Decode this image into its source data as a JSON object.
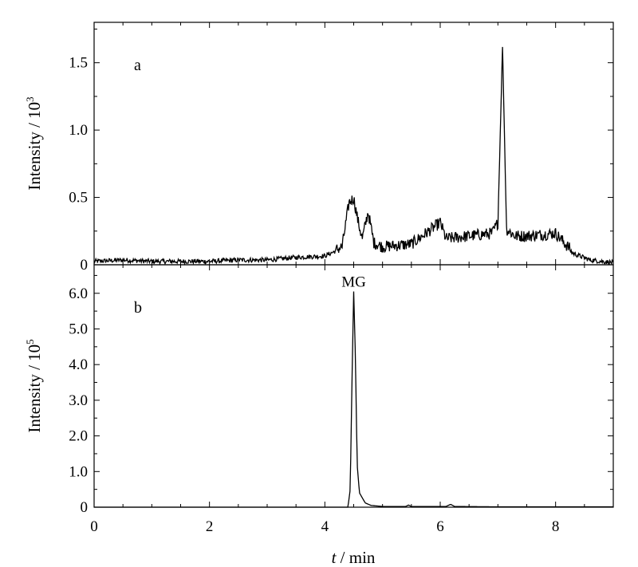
{
  "chart_data": [
    {
      "panel": "a",
      "type": "line",
      "panel_label": "a",
      "xlabel": "t / min",
      "ylabel": "Intensity / 10",
      "ylabel_exponent": "3",
      "xlim": [
        0,
        9
      ],
      "ylim": [
        0,
        1.8
      ],
      "yticks": [
        0,
        0.5,
        1.0,
        1.5
      ],
      "ytick_labels": [
        "0",
        "0.5",
        "1.0",
        "1.5"
      ],
      "grid": false,
      "series": [
        {
          "x": [
            0,
            0.5,
            1.0,
            1.5,
            2.0,
            2.5,
            3.0,
            3.5,
            4.0,
            4.3,
            4.42,
            4.5,
            4.58,
            4.65,
            4.75,
            4.85,
            5.0,
            5.5,
            6.0,
            6.1,
            6.5,
            6.9,
            7.0,
            7.08,
            7.15,
            7.3,
            7.5,
            8.0,
            8.3,
            8.6,
            9.0
          ],
          "y": [
            0.02,
            0.03,
            0.02,
            0.02,
            0.02,
            0.03,
            0.03,
            0.05,
            0.06,
            0.12,
            0.45,
            0.48,
            0.3,
            0.18,
            0.38,
            0.15,
            0.12,
            0.14,
            0.3,
            0.18,
            0.2,
            0.22,
            0.3,
            1.62,
            0.25,
            0.2,
            0.2,
            0.22,
            0.08,
            0.03,
            0.01
          ]
        }
      ]
    },
    {
      "panel": "b",
      "type": "line",
      "panel_label": "b",
      "xlabel": "t / min",
      "ylabel": "Intensity / 10",
      "ylabel_exponent": "5",
      "xlim": [
        0,
        9
      ],
      "ylim": [
        0,
        6.8
      ],
      "yticks": [
        0,
        1.0,
        2.0,
        3.0,
        4.0,
        5.0,
        6.0
      ],
      "ytick_labels": [
        "0",
        "1.0",
        "2.0",
        "3.0",
        "4.0",
        "5.0",
        "6.0"
      ],
      "xticks": [
        0,
        2,
        4,
        6,
        8
      ],
      "xtick_labels": [
        "0",
        "2",
        "4",
        "6",
        "8"
      ],
      "grid": false,
      "annotations": [
        {
          "text": "MG",
          "x": 4.5,
          "y": 6.05
        }
      ],
      "series": [
        {
          "x": [
            0,
            4.0,
            4.4,
            4.44,
            4.47,
            4.5,
            4.53,
            4.56,
            4.6,
            4.7,
            4.8,
            5.0,
            5.4,
            5.45,
            5.5,
            6.1,
            6.18,
            6.25,
            7.0,
            9.0
          ],
          "y": [
            0,
            0,
            0,
            0.5,
            3.5,
            6.05,
            4.2,
            1.2,
            0.4,
            0.12,
            0.05,
            0.02,
            0.02,
            0.06,
            0.02,
            0.02,
            0.08,
            0.02,
            0.01,
            0.01
          ]
        }
      ]
    }
  ]
}
